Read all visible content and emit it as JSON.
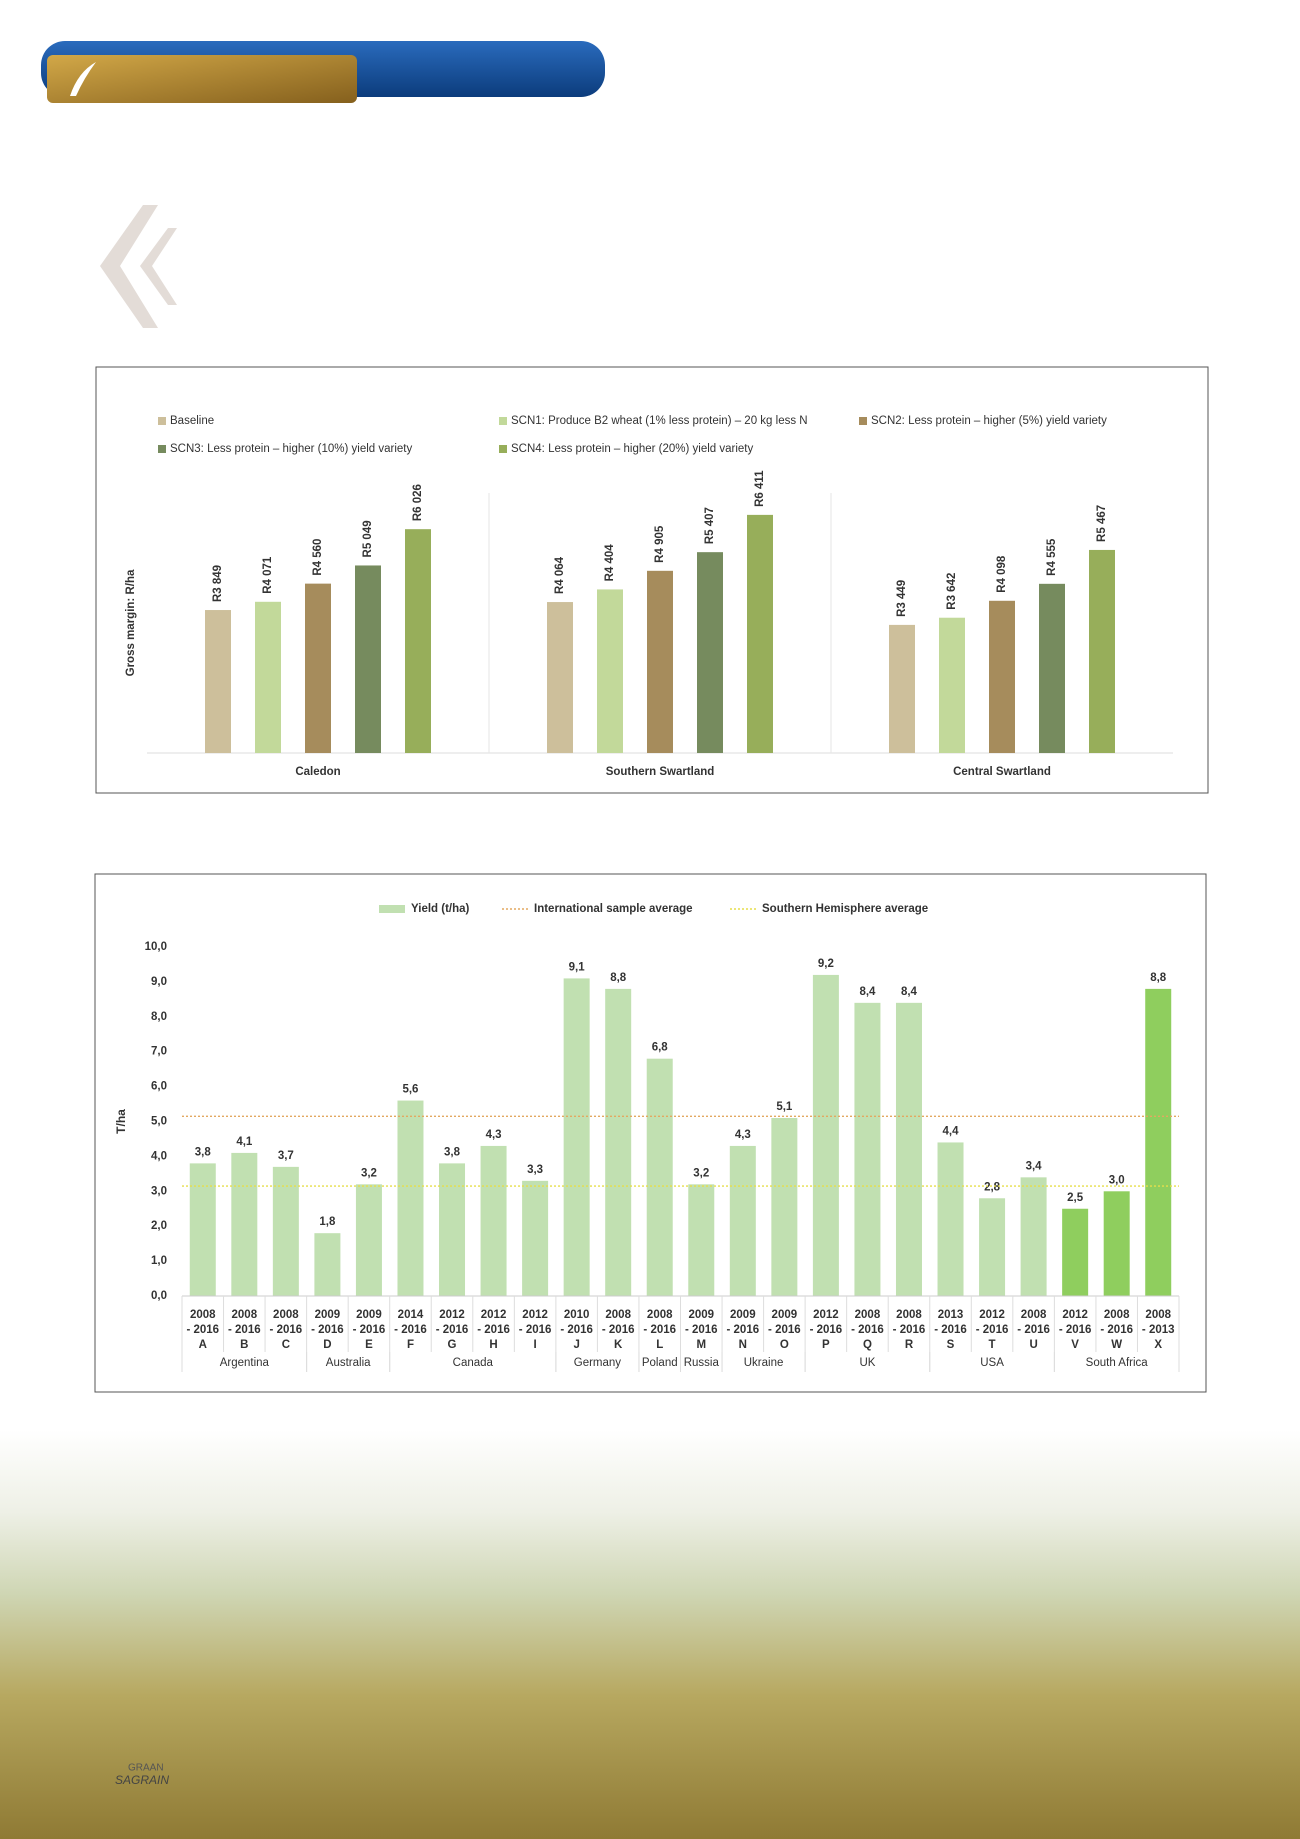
{
  "chart_data": [
    {
      "type": "bar",
      "ylabel": "Gross margin: R/ha",
      "categories": [
        "Caledon",
        "Southern Swartland",
        "Central Swartland"
      ],
      "ylim": [
        0,
        7000
      ],
      "series": [
        {
          "name": "Baseline",
          "color": "#cdbf9b",
          "values": [
            3849,
            4064,
            3449
          ],
          "value_labels": [
            "R3 849",
            "R4 064",
            "R3 449"
          ]
        },
        {
          "name": "SCN1: Produce B2 wheat (1% less protein) – 20 kg less N",
          "color": "#c2d99a",
          "values": [
            4071,
            4404,
            3642
          ],
          "value_labels": [
            "R4 071",
            "R4 404",
            "R3 642"
          ]
        },
        {
          "name": "SCN2: Less protein – higher (5%) yield variety",
          "color": "#a68c5c",
          "values": [
            4560,
            4905,
            4098
          ],
          "value_labels": [
            "R4 560",
            "R4 905",
            "R4 098"
          ]
        },
        {
          "name": "SCN3: Less protein – higher (10%) yield variety",
          "color": "#768b5e",
          "values": [
            5049,
            5407,
            4555
          ],
          "value_labels": [
            "R5 049",
            "R5 407",
            "R4 555"
          ]
        },
        {
          "name": "SCN4: Less protein – higher (20%) yield variety",
          "color": "#97ae5a",
          "values": [
            6026,
            6411,
            5467
          ],
          "value_labels": [
            "R6 026",
            "R6 411",
            "R5 467"
          ]
        }
      ]
    },
    {
      "type": "bar",
      "ylabel": "T/ha",
      "categories": [
        "A",
        "B",
        "C",
        "D",
        "E",
        "F",
        "G",
        "H",
        "I",
        "J",
        "K",
        "L",
        "M",
        "N",
        "O",
        "P",
        "Q",
        "R",
        "S",
        "T",
        "U",
        "V",
        "W",
        "X"
      ],
      "periods": [
        [
          "2008",
          "- 2016"
        ],
        [
          "2008",
          "- 2016"
        ],
        [
          "2008",
          "- 2016"
        ],
        [
          "2009",
          "- 2016"
        ],
        [
          "2009",
          "- 2016"
        ],
        [
          "2014",
          "- 2016"
        ],
        [
          "2012",
          "- 2016"
        ],
        [
          "2012",
          "- 2016"
        ],
        [
          "2012",
          "- 2016"
        ],
        [
          "2010",
          "- 2016"
        ],
        [
          "2008",
          "- 2016"
        ],
        [
          "2008",
          "- 2016"
        ],
        [
          "2009",
          "- 2016"
        ],
        [
          "2009",
          "- 2016"
        ],
        [
          "2009",
          "- 2016"
        ],
        [
          "2012",
          "- 2016"
        ],
        [
          "2008",
          "- 2016"
        ],
        [
          "2008",
          "- 2016"
        ],
        [
          "2013",
          "- 2016"
        ],
        [
          "2012",
          "- 2016"
        ],
        [
          "2008",
          "- 2016"
        ],
        [
          "2012",
          "- 2016"
        ],
        [
          "2008",
          "- 2016"
        ],
        [
          "2008",
          "- 2013"
        ]
      ],
      "countries": [
        "Argentina",
        "Argentina",
        "Argentina",
        "Australia",
        "Australia",
        "Canada",
        "Canada",
        "Canada",
        "Canada",
        "Germany",
        "Germany",
        "Poland",
        "Russia",
        "Ukraine",
        "Ukraine",
        "UK",
        "UK",
        "UK",
        "USA",
        "USA",
        "USA",
        "South Africa",
        "South Africa",
        "South Africa"
      ],
      "ylim": [
        0,
        10
      ],
      "yticks": [
        {
          "value": 0,
          "label": "0,0"
        },
        {
          "value": 1,
          "label": "1,0"
        },
        {
          "value": 2,
          "label": "2,0"
        },
        {
          "value": 3,
          "label": "3,0"
        },
        {
          "value": 4,
          "label": "4,0"
        },
        {
          "value": 5,
          "label": "5,0"
        },
        {
          "value": 6,
          "label": "6,0"
        },
        {
          "value": 7,
          "label": "7,0"
        },
        {
          "value": 8,
          "label": "8,0"
        },
        {
          "value": 9,
          "label": "9,0"
        },
        {
          "value": 10,
          "label": "10,0"
        }
      ],
      "series": [
        {
          "name": "Yield (t/ha)",
          "color": "#c1e0b1",
          "values": [
            3.8,
            4.1,
            3.7,
            1.8,
            3.2,
            5.6,
            3.8,
            4.3,
            3.3,
            9.1,
            8.8,
            6.8,
            3.2,
            4.3,
            5.1,
            9.2,
            8.4,
            8.4,
            4.4,
            2.8,
            3.4,
            2.5,
            3.0,
            8.8
          ],
          "value_labels": [
            "3,8",
            "4,1",
            "3,7",
            "1,8",
            "3,2",
            "5,6",
            "3,8",
            "4,3",
            "3,3",
            "9,1",
            "8,8",
            "6,8",
            "3,2",
            "4,3",
            "5,1",
            "9,2",
            "8,4",
            "8,4",
            "4,4",
            "2,8",
            "3,4",
            "2,5",
            "3,0",
            "8,8"
          ],
          "colors": [
            "#c1e0b1",
            "#c1e0b1",
            "#c1e0b1",
            "#c1e0b1",
            "#c1e0b1",
            "#c1e0b1",
            "#c1e0b1",
            "#c1e0b1",
            "#c1e0b1",
            "#c1e0b1",
            "#c1e0b1",
            "#c1e0b1",
            "#c1e0b1",
            "#c1e0b1",
            "#c1e0b1",
            "#c1e0b1",
            "#c1e0b1",
            "#c1e0b1",
            "#c1e0b1",
            "#c1e0b1",
            "#c1e0b1",
            "#8fce5e",
            "#8fce5e",
            "#8fce5e"
          ]
        }
      ],
      "reference_lines": [
        {
          "name": "International sample average",
          "value": 5.15,
          "color": "#e3a860"
        },
        {
          "name": "Southern Hemisphere average",
          "value": 3.15,
          "color": "#e6de4a"
        }
      ]
    }
  ],
  "footer": {
    "logo_top": "GRAAN",
    "logo_bottom": "SAGRAIN"
  }
}
